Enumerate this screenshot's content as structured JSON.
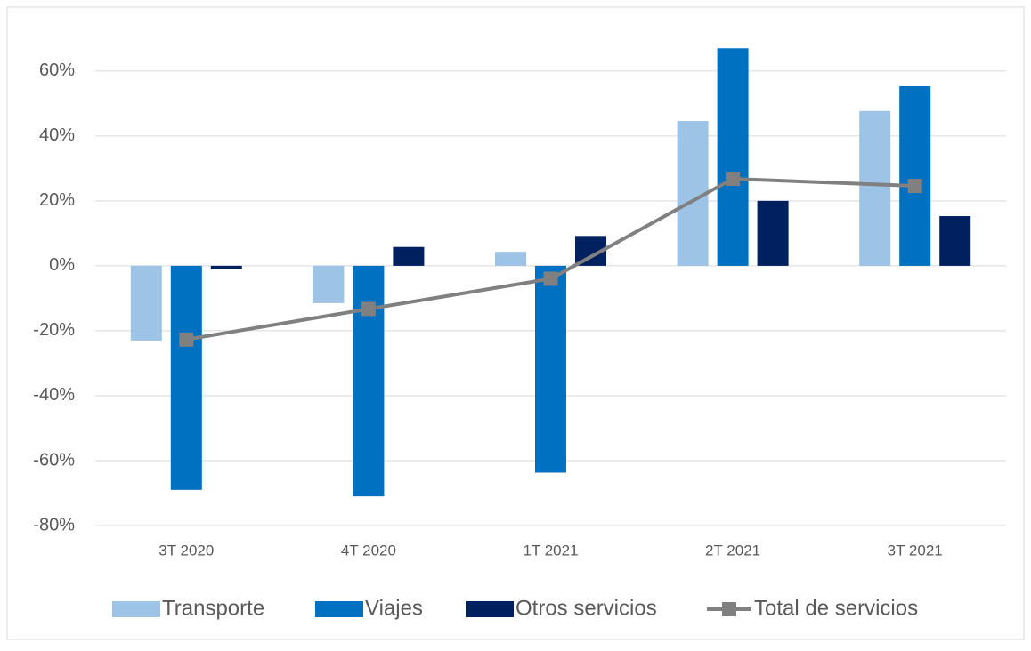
{
  "chart_data": {
    "type": "bar",
    "categories": [
      "3T 2020",
      "4T 2020",
      "1T 2021",
      "2T 2021",
      "3T 2021"
    ],
    "series": [
      {
        "name": "Transporte",
        "color": "#9dc3e6",
        "values": [
          -23,
          -11.5,
          4.3,
          44.6,
          47.7
        ]
      },
      {
        "name": "Viajes",
        "color": "#0070c0",
        "values": [
          -69,
          -71,
          -63.7,
          67,
          55.3
        ]
      },
      {
        "name": "Otros servicios",
        "color": "#002060",
        "values": [
          -1,
          5.8,
          9.2,
          20,
          15.3
        ]
      },
      {
        "name": "Total de servicios",
        "color": "#808080",
        "type": "line",
        "values": [
          -22.7,
          -13.3,
          -4.0,
          26.8,
          24.6
        ]
      }
    ],
    "ylim": [
      -80,
      72
    ],
    "yticks": [
      {
        "value": -80,
        "label": "-80%"
      },
      {
        "value": -60,
        "label": "-60%"
      },
      {
        "value": -40,
        "label": "-40%"
      },
      {
        "value": -20,
        "label": "-20%"
      },
      {
        "value": 0,
        "label": "0%"
      },
      {
        "value": 20,
        "label": "20%"
      },
      {
        "value": 40,
        "label": "40%"
      },
      {
        "value": 60,
        "label": "60%"
      }
    ],
    "grid": true,
    "legend": "bottom"
  }
}
